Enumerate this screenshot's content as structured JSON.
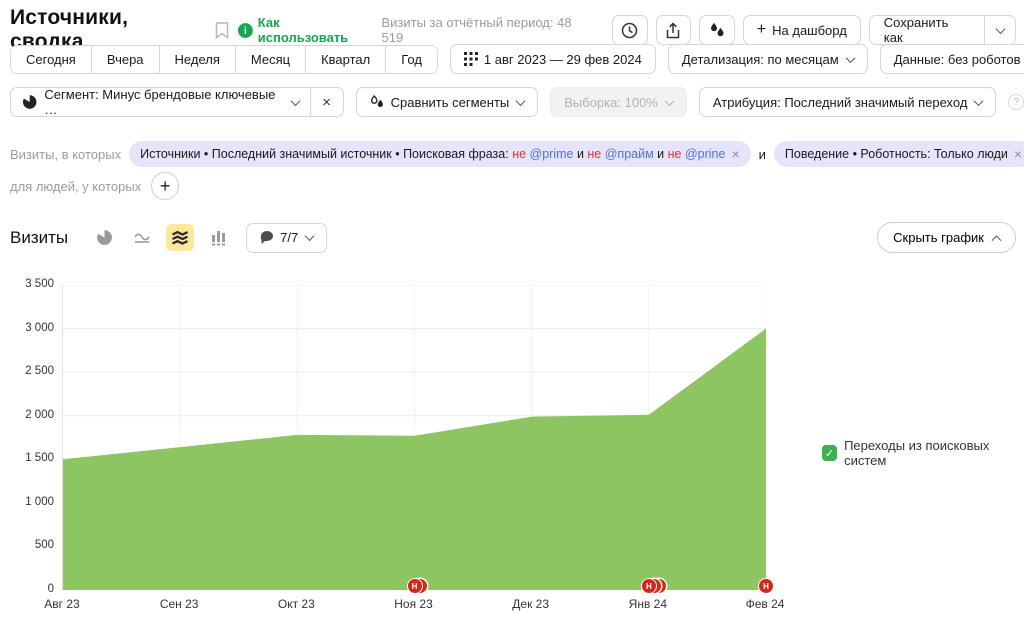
{
  "header": {
    "title": "Источники, сводка",
    "how_to_use": "Как использовать",
    "period_total": "Визиты за отчётный период: 48 519",
    "dashboard_button": "На дашборд",
    "dashboard_plus": "+",
    "save_as_button": "Сохранить как"
  },
  "toolbar": {
    "tabs": [
      "Сегодня",
      "Вчера",
      "Неделя",
      "Месяц",
      "Квартал",
      "Год"
    ],
    "date_range": "1 авг 2023 — 29 фев 2024",
    "granularity_button": "Детализация: по месяцам",
    "data_button": "Данные: без роботов"
  },
  "segments": {
    "segment_button": "Сегмент: Минус брендовые ключевые …",
    "segment_close": "×",
    "compare_button": "Сравнить сегменты",
    "sampling_button": "Выборка: 100%",
    "attribution_button": "Атрибуция: Последний значимый переход"
  },
  "filters": {
    "visits_in_which": "Визиты, в которых",
    "source_chip_tokens": [
      {
        "text": "Источники • Последний значимый источник • Поисковая фраза: ",
        "style": "plain"
      },
      {
        "text": "не ",
        "style": "negate"
      },
      {
        "text": "@prime",
        "style": "mention"
      },
      {
        "text": " и ",
        "style": "plain"
      },
      {
        "text": "не ",
        "style": "negate"
      },
      {
        "text": "@прайм",
        "style": "mention"
      },
      {
        "text": " и ",
        "style": "plain"
      },
      {
        "text": "не ",
        "style": "negate"
      },
      {
        "text": "@prine",
        "style": "mention"
      }
    ],
    "chip_close": "×",
    "and_connector": "и",
    "behavior_chip": "Поведение • Роботность: Только люди",
    "for_people": "для людей, у которых",
    "add_filter": "+"
  },
  "chart_section": {
    "metric": "Визиты",
    "annotations_count": "7/7",
    "hide_chart": "Скрыть график"
  },
  "chart_data": {
    "type": "area",
    "title": "Визиты",
    "categories": [
      "Авг 23",
      "Сен 23",
      "Окт 23",
      "Ноя 23",
      "Дек 23",
      "Янв 24",
      "Фев 24"
    ],
    "series": [
      {
        "name": "Переходы из поисковых систем",
        "color": "#8dc563",
        "values": [
          1500,
          1640,
          1780,
          1770,
          1990,
          2010,
          3000
        ]
      }
    ],
    "ylim": [
      0,
      3500
    ],
    "ytick_values": [
      0,
      500,
      1000,
      1500,
      2000,
      2500,
      3000,
      3500
    ],
    "ytick_labels": [
      "0",
      "500",
      "1 000",
      "1 500",
      "2 000",
      "2 500",
      "3 000",
      "3 500"
    ],
    "grid": true,
    "legend_position": "right",
    "annotations": [
      {
        "category": "Ноя 23",
        "badge": "Н",
        "stack": 2
      },
      {
        "category": "Янв 24",
        "badge": "Н",
        "stack": 3
      },
      {
        "category": "Фев 24",
        "badge": "Н",
        "stack": 1
      }
    ]
  },
  "legend": {
    "item": "Переходы из поисковых систем",
    "check": "✓",
    "color": "#3cb14e"
  },
  "colors": {
    "accent_green": "#18a651",
    "area_fill": "#8dc563",
    "chip_bg": "#e6e4fa",
    "negate_red": "#e0362c",
    "mention_blue": "#4a76d6",
    "marker_red": "#d6271d",
    "selected_icon_bg": "#ffe79e"
  }
}
